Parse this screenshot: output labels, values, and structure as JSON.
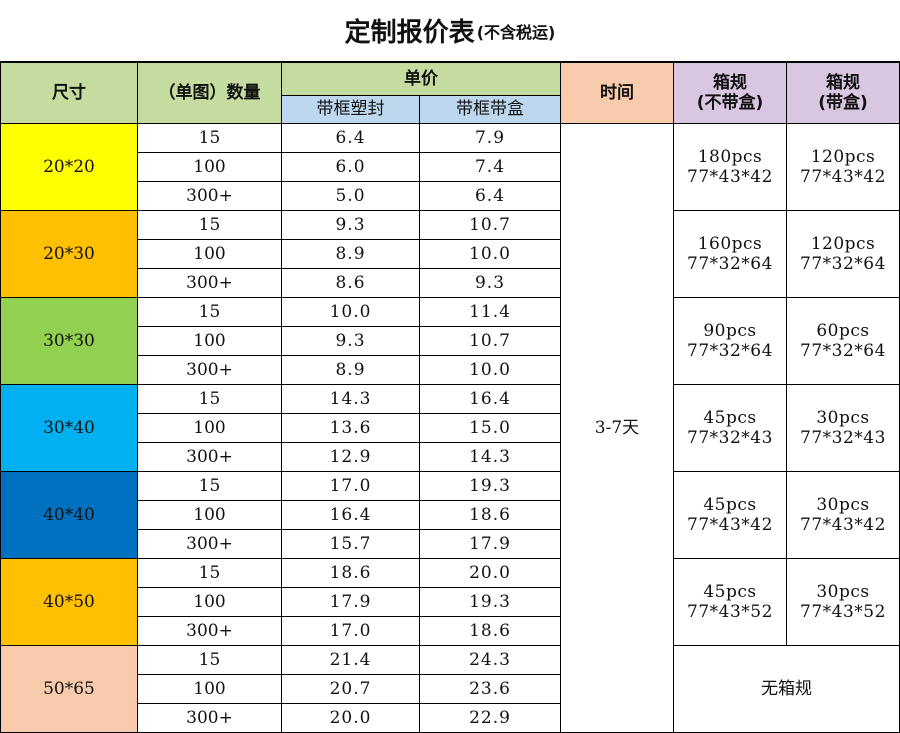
{
  "title": {
    "main": "定制报价表",
    "sub": "(不含税运)"
  },
  "headers": {
    "size": "尺寸",
    "quantity": "（单图）数量",
    "unit_price": "单价",
    "col_framed_plastic": "带框塑封",
    "col_framed_box": "带框带盒",
    "time": "时间",
    "pack_no_box_line1": "箱规",
    "pack_no_box_line2": "(不带盒)",
    "pack_box_line1": "箱规",
    "pack_box_line2": "(带盒)"
  },
  "time_value": "3-7天",
  "no_pack": "无箱规",
  "groups": [
    {
      "size": "20*20",
      "color": "#ffff00",
      "rows": [
        {
          "qty": "15",
          "p1": "6.4",
          "p2": "7.9"
        },
        {
          "qty": "100",
          "p1": "6.0",
          "p2": "7.4"
        },
        {
          "qty": "300+",
          "p1": "5.0",
          "p2": "6.4"
        }
      ],
      "pack_no_box": {
        "pcs": "180pcs",
        "dims": "77*43*42"
      },
      "pack_box": {
        "pcs": "120pcs",
        "dims": "77*43*42"
      }
    },
    {
      "size": "20*30",
      "color": "#ffc000",
      "rows": [
        {
          "qty": "15",
          "p1": "9.3",
          "p2": "10.7"
        },
        {
          "qty": "100",
          "p1": "8.9",
          "p2": "10.0"
        },
        {
          "qty": "300+",
          "p1": "8.6",
          "p2": "9.3"
        }
      ],
      "pack_no_box": {
        "pcs": "160pcs",
        "dims": "77*32*64"
      },
      "pack_box": {
        "pcs": "120pcs",
        "dims": "77*32*64"
      }
    },
    {
      "size": "30*30",
      "color": "#92d050",
      "rows": [
        {
          "qty": "15",
          "p1": "10.0",
          "p2": "11.4"
        },
        {
          "qty": "100",
          "p1": "9.3",
          "p2": "10.7"
        },
        {
          "qty": "300+",
          "p1": "8.9",
          "p2": "10.0"
        }
      ],
      "pack_no_box": {
        "pcs": "90pcs",
        "dims": "77*32*64"
      },
      "pack_box": {
        "pcs": "60pcs",
        "dims": "77*32*64"
      }
    },
    {
      "size": "30*40",
      "color": "#00b0f0",
      "rows": [
        {
          "qty": "15",
          "p1": "14.3",
          "p2": "16.4"
        },
        {
          "qty": "100",
          "p1": "13.6",
          "p2": "15.0"
        },
        {
          "qty": "300+",
          "p1": "12.9",
          "p2": "14.3"
        }
      ],
      "pack_no_box": {
        "pcs": "45pcs",
        "dims": "77*32*43"
      },
      "pack_box": {
        "pcs": "30pcs",
        "dims": "77*32*43"
      }
    },
    {
      "size": "40*40",
      "color": "#0070c0",
      "rows": [
        {
          "qty": "15",
          "p1": "17.0",
          "p2": "19.3"
        },
        {
          "qty": "100",
          "p1": "16.4",
          "p2": "18.6"
        },
        {
          "qty": "300+",
          "p1": "15.7",
          "p2": "17.9"
        }
      ],
      "pack_no_box": {
        "pcs": "45pcs",
        "dims": "77*43*42"
      },
      "pack_box": {
        "pcs": "30pcs",
        "dims": "77*43*42"
      }
    },
    {
      "size": "40*50",
      "color": "#ffc000",
      "rows": [
        {
          "qty": "15",
          "p1": "18.6",
          "p2": "20.0"
        },
        {
          "qty": "100",
          "p1": "17.9",
          "p2": "19.3"
        },
        {
          "qty": "300+",
          "p1": "17.0",
          "p2": "18.6"
        }
      ],
      "pack_no_box": {
        "pcs": "45pcs",
        "dims": "77*43*52"
      },
      "pack_box": {
        "pcs": "30pcs",
        "dims": "77*43*52"
      }
    },
    {
      "size": "50*65",
      "color": "#f8cbad",
      "rows": [
        {
          "qty": "15",
          "p1": "21.4",
          "p2": "24.3"
        },
        {
          "qty": "100",
          "p1": "20.7",
          "p2": "23.6"
        },
        {
          "qty": "300+",
          "p1": "20.0",
          "p2": "22.9"
        }
      ],
      "pack_no_box": null,
      "pack_box": null
    }
  ]
}
